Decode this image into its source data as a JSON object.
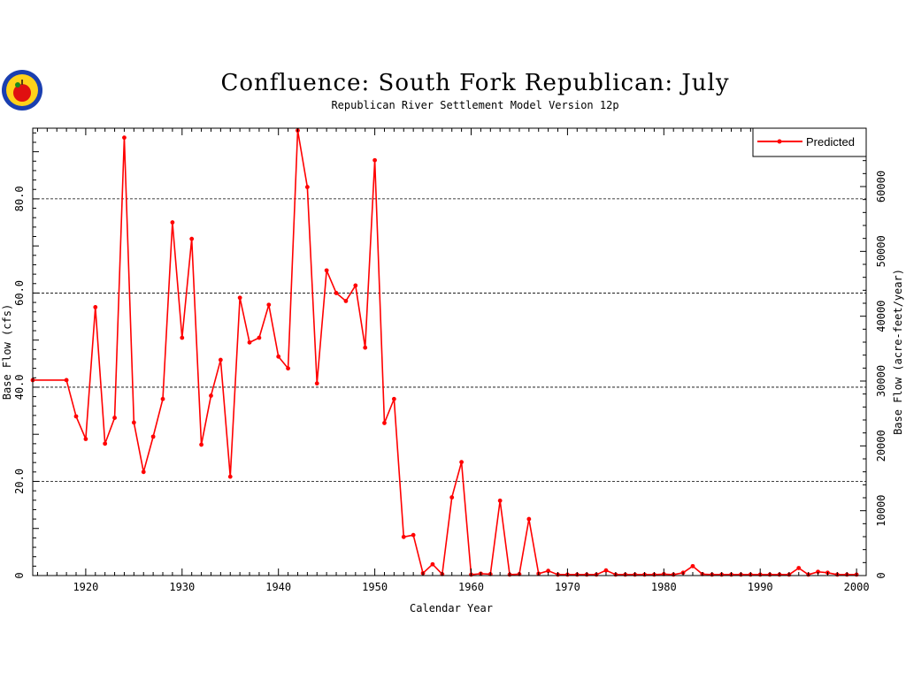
{
  "chart_data": {
    "type": "line",
    "title": "Confluence: South Fork Republican: July",
    "subtitle": "Republican River Settlement Model Version 12p",
    "xlabel": "Calendar Year",
    "ylabel": "Base Flow (cfs)",
    "y2label": "Base Flow (acre-feet/year)",
    "xlim": [
      1914.5,
      2001
    ],
    "ylim": [
      0,
      95
    ],
    "y2lim": [
      0,
      69000
    ],
    "x_ticks": [
      1920,
      1930,
      1940,
      1950,
      1960,
      1970,
      1980,
      1990,
      2000
    ],
    "y_ticks": [
      0,
      20,
      40,
      60,
      80
    ],
    "y_tick_labels": [
      "0",
      "20.0",
      "40.0",
      "60.0",
      "80.0"
    ],
    "y2_ticks": [
      0,
      10000,
      20000,
      30000,
      40000,
      50000,
      60000
    ],
    "grid": "horizontal-dashed",
    "legend_position": "top-right",
    "series": [
      {
        "name": "Predicted",
        "color": "#ff0000",
        "x": [
          1914.5,
          1918,
          1919,
          1920,
          1921,
          1922,
          1923,
          1924,
          1925,
          1926,
          1927,
          1928,
          1929,
          1930,
          1931,
          1932,
          1933,
          1934,
          1935,
          1936,
          1937,
          1938,
          1939,
          1940,
          1941,
          1942,
          1943,
          1944,
          1945,
          1946,
          1947,
          1948,
          1949,
          1950,
          1951,
          1952,
          1953,
          1954,
          1955,
          1956,
          1957,
          1958,
          1959,
          1960,
          1961,
          1962,
          1963,
          1964,
          1965,
          1966,
          1967,
          1968,
          1969,
          1970,
          1971,
          1972,
          1973,
          1974,
          1975,
          1976,
          1977,
          1978,
          1979,
          1980,
          1981,
          1982,
          1983,
          1984,
          1985,
          1986,
          1987,
          1988,
          1989,
          1990,
          1991,
          1992,
          1993,
          1994,
          1995,
          1996,
          1997,
          1998,
          1999,
          2000
        ],
        "values": [
          41.5,
          41.5,
          33.8,
          29.0,
          57.0,
          28.0,
          33.5,
          93.0,
          32.5,
          22.0,
          29.5,
          37.5,
          75.0,
          50.5,
          71.5,
          27.8,
          38.2,
          45.8,
          21.0,
          59.0,
          49.5,
          50.5,
          57.5,
          46.5,
          44.0,
          94.5,
          82.5,
          40.8,
          64.8,
          60.0,
          58.3,
          61.6,
          48.4,
          88.2,
          32.4,
          37.5,
          8.2,
          8.6,
          0.5,
          2.4,
          0.3,
          16.6,
          24.1,
          0.2,
          0.4,
          0.3,
          15.9,
          0.2,
          0.3,
          12.0,
          0.4,
          1.0,
          0.2,
          0.2,
          0.2,
          0.2,
          0.2,
          1.1,
          0.2,
          0.2,
          0.2,
          0.2,
          0.2,
          0.3,
          0.2,
          0.6,
          2.0,
          0.3,
          0.2,
          0.2,
          0.2,
          0.2,
          0.2,
          0.2,
          0.2,
          0.2,
          0.2,
          1.6,
          0.2,
          0.8,
          0.6,
          0.2,
          0.2,
          0.2
        ]
      }
    ]
  }
}
